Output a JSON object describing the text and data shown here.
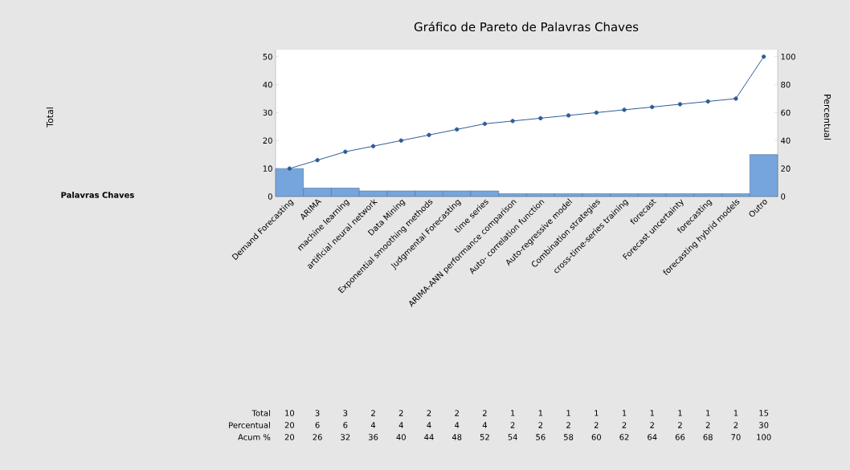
{
  "chart_data": {
    "type": "bar",
    "title": "Gráfico de Pareto de Palavras Chaves",
    "y2label": "Percentual",
    "annotations": [
      "Total",
      "Palavras Chaves",
      "Total",
      "Percentual",
      "Acum %",
      "20",
      "6",
      "6",
      "4",
      "4",
      "4",
      "4",
      "4",
      "2",
      "2",
      "2",
      "2",
      "2",
      "2",
      "2",
      "2",
      "2",
      "30"
    ],
    "categories": [
      "Demand Forecasting",
      "ARIMA",
      "machine learning",
      "artificial neural network",
      "Data Mining",
      "Exponential smoothing methods",
      "Judgmental Forecasting",
      "time series",
      "ARIMA-ANN performance comparison",
      "Auto- correlation function",
      "Auto-regressive model",
      "Combination strategies",
      "cross-time-series training",
      "forecast",
      "Forecast uncertainty",
      "forecasting",
      "forecasting hybrid models",
      "Outro"
    ],
    "series": [
      {
        "color": "#76a5dd",
        "values": [
          10,
          3,
          3,
          2,
          2,
          2,
          2,
          2,
          1,
          1,
          1,
          1,
          1,
          1,
          1,
          1,
          1,
          15
        ]
      },
      {
        "type": "line",
        "axis": "y2",
        "color": "#2d5d97",
        "marker": "circle",
        "values": [
          20,
          26,
          32,
          36,
          40,
          44,
          48,
          52,
          54,
          56,
          58,
          60,
          62,
          64,
          66,
          68,
          70,
          100
        ]
      }
    ],
    "ylim": [
      0,
      52.5
    ],
    "yticks": [
      0,
      10,
      20,
      30,
      40,
      50
    ],
    "y2lim": [
      0,
      105
    ],
    "y2ticks": [
      0,
      20,
      40,
      60,
      80,
      100
    ],
    "data_labels": true
  }
}
